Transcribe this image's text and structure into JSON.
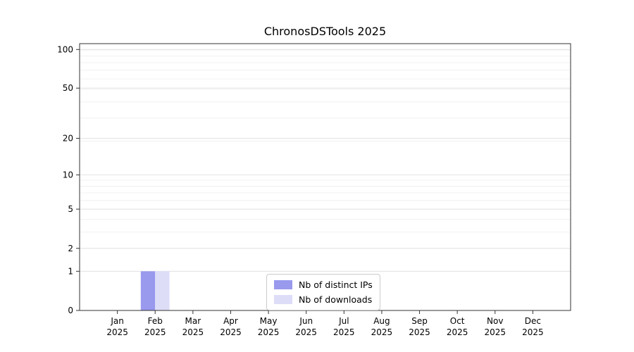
{
  "figure": {
    "background": "#ffffff"
  },
  "chart_data": {
    "type": "bar",
    "title": "ChronosDSTools 2025",
    "categories": [
      "Jan",
      "Feb",
      "Mar",
      "Apr",
      "May",
      "Jun",
      "Jul",
      "Aug",
      "Sep",
      "Oct",
      "Nov",
      "Dec"
    ],
    "year_label": "2025",
    "series": [
      {
        "name": "Nb of distinct IPs",
        "color": "#9999ee",
        "values": [
          0,
          1,
          0,
          0,
          0,
          0,
          0,
          0,
          0,
          0,
          0,
          0
        ]
      },
      {
        "name": "Nb of downloads",
        "color": "#ddddf8",
        "values": [
          0,
          1,
          0,
          0,
          0,
          0,
          0,
          0,
          0,
          0,
          0,
          0
        ]
      }
    ],
    "yticks": [
      0,
      1,
      2,
      5,
      10,
      20,
      50,
      100
    ],
    "ylim": [
      0,
      111
    ],
    "xlim": [
      -1,
      12
    ],
    "scale": "log1p",
    "grid": true,
    "legend_position": "lower center",
    "colors": {
      "axis": "#333333",
      "grid_minor": "#f0f0f0",
      "grid_major": "#e3e3e3",
      "text": "#000000"
    }
  }
}
